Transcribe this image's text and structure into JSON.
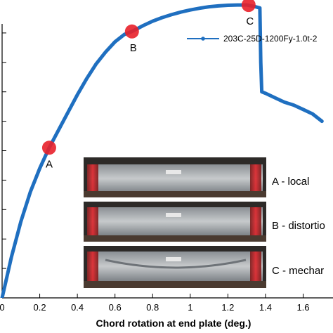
{
  "chart_data": {
    "type": "line",
    "xlabel": "Chord rotation at end plate (deg.)",
    "ylabel": "",
    "xlim": [
      0,
      1.75
    ],
    "ylim": [
      0,
      1.0
    ],
    "x_ticks": [
      0,
      0.2,
      0.4,
      0.6,
      0.8,
      1,
      1.2,
      1.4,
      1.6
    ],
    "x_tick_labels": [
      "0",
      "0.2",
      "0.4",
      "0.6",
      "0.8",
      "1",
      "1.2",
      "1.4",
      "1.6"
    ],
    "y_ticks": [
      0.0,
      0.1,
      0.2,
      0.3,
      0.4,
      0.5,
      0.6,
      0.7,
      0.8,
      0.9
    ],
    "grid": false,
    "legend_position": "top-right",
    "series": [
      {
        "name": "203C-25D-1200Fy-1.0t-2",
        "color": "#1f6fc0",
        "x": [
          0,
          0.05,
          0.1,
          0.15,
          0.2,
          0.25,
          0.3,
          0.35,
          0.4,
          0.45,
          0.5,
          0.55,
          0.6,
          0.65,
          0.69,
          0.75,
          0.8,
          0.85,
          0.9,
          0.95,
          1.0,
          1.05,
          1.1,
          1.15,
          1.2,
          1.25,
          1.3,
          1.34,
          1.37,
          1.375,
          1.38,
          1.4,
          1.45,
          1.5,
          1.55,
          1.6,
          1.65,
          1.7
        ],
        "y": [
          0.0,
          0.14,
          0.26,
          0.36,
          0.44,
          0.51,
          0.57,
          0.63,
          0.69,
          0.745,
          0.795,
          0.835,
          0.87,
          0.895,
          0.905,
          0.925,
          0.94,
          0.952,
          0.962,
          0.971,
          0.978,
          0.984,
          0.989,
          0.992,
          0.994,
          0.995,
          0.995,
          0.99,
          0.985,
          0.8,
          0.7,
          0.695,
          0.68,
          0.665,
          0.655,
          0.64,
          0.625,
          0.6
        ]
      }
    ],
    "annotations": [
      {
        "label": "A",
        "x": 0.25,
        "y": 0.51,
        "marker_color": "#e8202a"
      },
      {
        "label": "B",
        "x": 0.69,
        "y": 0.905,
        "marker_color": "#e8202a"
      },
      {
        "label": "C",
        "x": 1.31,
        "y": 0.995,
        "marker_color": "#e8202a"
      }
    ],
    "inset_labels": [
      "A - local",
      "B - distortio",
      "C - mechar"
    ],
    "inset_icon": "specimen-photo"
  }
}
